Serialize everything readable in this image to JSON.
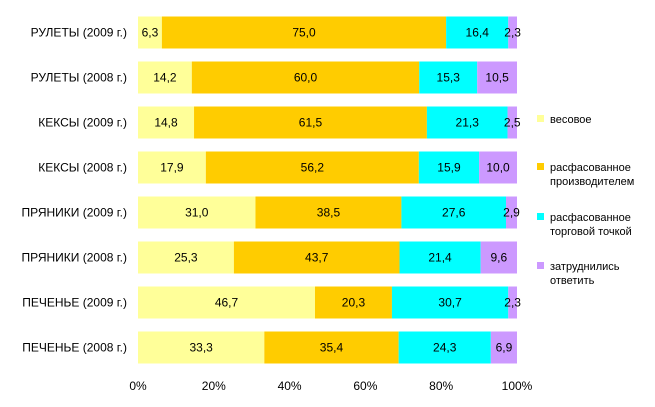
{
  "chart_data": {
    "type": "bar",
    "orientation": "horizontal",
    "stacked": true,
    "percent": true,
    "categories": [
      "РУЛЕТЫ (2009 г.)",
      "РУЛЕТЫ (2008 г.)",
      "КЕКСЫ (2009 г.)",
      "КЕКСЫ (2008 г.)",
      "ПРЯНИКИ  (2009 г.)",
      "ПРЯНИКИ (2008 г.)",
      "ПЕЧЕНЬЕ (2009 г.)",
      "ПЕЧЕНЬЕ (2008 г.)"
    ],
    "series": [
      {
        "name": "весовое",
        "color": "#FFFF99",
        "values": [
          6.3,
          14.2,
          14.8,
          17.9,
          31.0,
          25.3,
          46.7,
          33.3
        ],
        "labels": [
          "6,3",
          "14,2",
          "14,8",
          "17,9",
          "31,0",
          "25,3",
          "46,7",
          "33,3"
        ]
      },
      {
        "name": "расфасованное производителем",
        "color": "#FFCC00",
        "values": [
          75.0,
          60.0,
          61.5,
          56.2,
          38.5,
          43.7,
          20.3,
          35.4
        ],
        "labels": [
          "75,0",
          "60,0",
          "61,5",
          "56,2",
          "38,5",
          "43,7",
          "20,3",
          "35,4"
        ]
      },
      {
        "name": "расфасованное торговой точкой",
        "color": "#00FFFF",
        "values": [
          16.4,
          15.3,
          21.3,
          15.9,
          27.6,
          21.4,
          30.7,
          24.3
        ],
        "labels": [
          "16,4",
          "15,3",
          "21,3",
          "15,9",
          "27,6",
          "21,4",
          "30,7",
          "24,3"
        ]
      },
      {
        "name": "затруднились ответить",
        "color": "#CC99FF",
        "values": [
          2.3,
          10.5,
          2.5,
          10.0,
          2.9,
          9.6,
          2.3,
          6.9
        ],
        "labels": [
          "2,3",
          "10,5",
          "2,5",
          "10,0",
          "2,9",
          "9,6",
          "2,3",
          "6,9"
        ]
      }
    ],
    "x_ticks": [
      "0%",
      "20%",
      "40%",
      "60%",
      "80%",
      "100%"
    ],
    "xlim": [
      0,
      100
    ],
    "grid": false,
    "legend_position": "right"
  }
}
